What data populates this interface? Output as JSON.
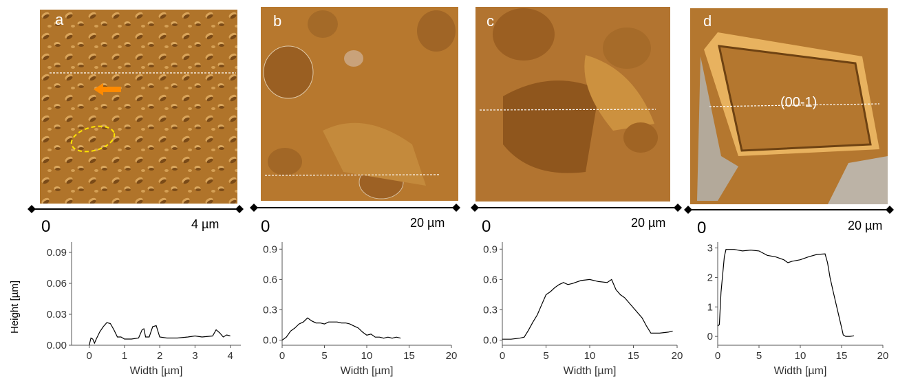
{
  "panels": [
    {
      "letter": "a",
      "scale_start": "0",
      "scale_end": "4 µm"
    },
    {
      "letter": "b",
      "scale_start": "0",
      "scale_end": "20 µm"
    },
    {
      "letter": "c",
      "scale_start": "0",
      "scale_end": "20 µm"
    },
    {
      "letter": "d",
      "scale_start": "0",
      "scale_end": "20 µm",
      "facet_label": "(00-1)"
    }
  ],
  "shared_ylabel": "Height [µm]",
  "colors": {
    "afm_base": "#b0742a",
    "afm_dark": "#7a4a17",
    "afm_light": "#d7a35a",
    "arrow": "#ff8a00",
    "ellipse": "#ffe600",
    "profile_line": "#000000"
  },
  "chart_data": [
    {
      "type": "line",
      "xlabel": "Width [µm]",
      "ylabel": "Height [µm]",
      "xlim": [
        -0.5,
        4.3
      ],
      "ylim": [
        0,
        0.1
      ],
      "xticks": [
        "0",
        "1",
        "2",
        "3",
        "4"
      ],
      "xtick_values": [
        0,
        1,
        2,
        3,
        4
      ],
      "yticks": [
        "0.00",
        "0.03",
        "0.06",
        "0.09"
      ],
      "ytick_values": [
        0,
        0.03,
        0.06,
        0.09
      ],
      "x": [
        0.0,
        0.05,
        0.1,
        0.15,
        0.2,
        0.3,
        0.4,
        0.5,
        0.6,
        0.7,
        0.8,
        0.9,
        1.0,
        1.2,
        1.4,
        1.5,
        1.55,
        1.6,
        1.7,
        1.8,
        1.9,
        2.0,
        2.2,
        2.5,
        2.8,
        3.0,
        3.2,
        3.5,
        3.6,
        3.7,
        3.8,
        3.9,
        4.0
      ],
      "y": [
        0.0,
        0.007,
        0.006,
        0.002,
        0.006,
        0.013,
        0.018,
        0.022,
        0.021,
        0.015,
        0.008,
        0.008,
        0.006,
        0.006,
        0.007,
        0.015,
        0.016,
        0.008,
        0.008,
        0.018,
        0.019,
        0.008,
        0.007,
        0.007,
        0.008,
        0.009,
        0.008,
        0.009,
        0.015,
        0.012,
        0.008,
        0.01,
        0.009
      ]
    },
    {
      "type": "line",
      "xlabel": "Width [µm]",
      "ylabel": "",
      "xlim": [
        0,
        20
      ],
      "ylim": [
        -0.05,
        0.97
      ],
      "xticks": [
        "0",
        "5",
        "10",
        "15",
        "20"
      ],
      "xtick_values": [
        0,
        5,
        10,
        15,
        20
      ],
      "yticks": [
        "0.0",
        "0.3",
        "0.6",
        "0.9"
      ],
      "ytick_values": [
        0,
        0.3,
        0.6,
        0.9
      ],
      "x": [
        0,
        0.5,
        1,
        1.5,
        2,
        2.5,
        3,
        3.5,
        4,
        4.5,
        5,
        5.5,
        6,
        6.5,
        7,
        7.5,
        8,
        8.5,
        9,
        9.5,
        10,
        10.5,
        11,
        11.5,
        12,
        12.5,
        13,
        13.5,
        14
      ],
      "y": [
        0.0,
        0.03,
        0.09,
        0.12,
        0.16,
        0.18,
        0.22,
        0.19,
        0.17,
        0.17,
        0.16,
        0.18,
        0.18,
        0.18,
        0.17,
        0.17,
        0.16,
        0.14,
        0.12,
        0.08,
        0.05,
        0.06,
        0.03,
        0.03,
        0.02,
        0.03,
        0.02,
        0.03,
        0.02
      ]
    },
    {
      "type": "line",
      "xlabel": "Width [µm]",
      "ylabel": "",
      "xlim": [
        0,
        20
      ],
      "ylim": [
        -0.05,
        0.97
      ],
      "xticks": [
        "0",
        "5",
        "10",
        "15",
        "20"
      ],
      "xtick_values": [
        0,
        5,
        10,
        15,
        20
      ],
      "yticks": [
        "0.0",
        "0.3",
        "0.6",
        "0.9"
      ],
      "ytick_values": [
        0,
        0.3,
        0.6,
        0.9
      ],
      "x": [
        0,
        1,
        2,
        2.5,
        3,
        3.5,
        4,
        4.5,
        5,
        5.5,
        6,
        6.5,
        7,
        7.5,
        8,
        9,
        10,
        11,
        12,
        12.5,
        13,
        13.5,
        14,
        15,
        16,
        16.5,
        17,
        18,
        19,
        19.5
      ],
      "y": [
        0.01,
        0.01,
        0.02,
        0.03,
        0.1,
        0.18,
        0.25,
        0.35,
        0.45,
        0.48,
        0.52,
        0.55,
        0.57,
        0.55,
        0.56,
        0.59,
        0.6,
        0.58,
        0.57,
        0.6,
        0.5,
        0.45,
        0.42,
        0.32,
        0.22,
        0.14,
        0.07,
        0.07,
        0.08,
        0.09
      ]
    },
    {
      "type": "line",
      "xlabel": "Width [µm]",
      "ylabel": "",
      "xlim": [
        0,
        20
      ],
      "ylim": [
        -0.3,
        3.2
      ],
      "xticks": [
        "0",
        "5",
        "10",
        "15",
        "20"
      ],
      "xtick_values": [
        0,
        5,
        10,
        15,
        20
      ],
      "yticks": [
        "0",
        "1",
        "2",
        "3"
      ],
      "ytick_values": [
        0,
        1,
        2,
        3
      ],
      "x": [
        0,
        0.2,
        0.4,
        0.8,
        1,
        2,
        3,
        4,
        5,
        6,
        7,
        8,
        8.5,
        9,
        10,
        11,
        12,
        13,
        13.3,
        13.6,
        14,
        14.5,
        15,
        15.2,
        15.5,
        16,
        16.5
      ],
      "y": [
        0.35,
        0.4,
        1.5,
        2.7,
        2.95,
        2.95,
        2.9,
        2.93,
        2.9,
        2.75,
        2.7,
        2.6,
        2.5,
        2.55,
        2.6,
        2.7,
        2.78,
        2.8,
        2.5,
        2.0,
        1.5,
        0.9,
        0.3,
        0.05,
        0.0,
        0.0,
        0.02
      ]
    }
  ]
}
